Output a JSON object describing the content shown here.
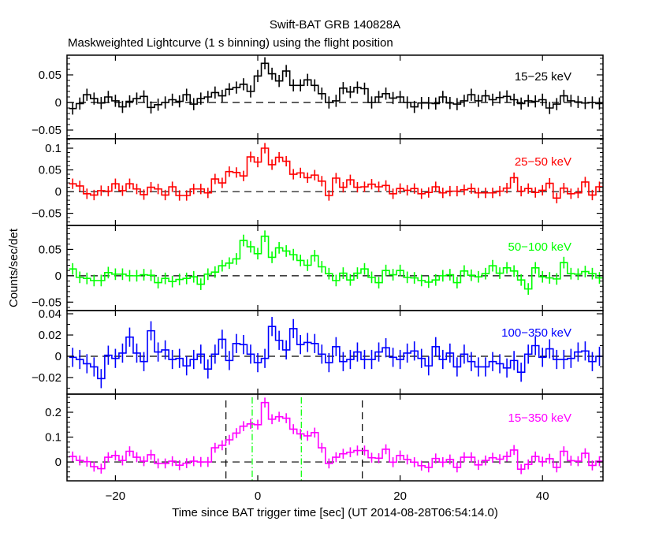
{
  "chart_data": {
    "type": "line",
    "title": "Swift-BAT GRB 140828A",
    "subtitle": "Maskweighted Lightcurve (1 s binning) using the flight position",
    "xlabel": "Time since BAT trigger time [sec] (UT 2014-08-28T06:54:14.0)",
    "ylabel": "Counts/sec/det",
    "xlim": [
      -26.8,
      48.5
    ],
    "xticks": [
      -20,
      0,
      20,
      40
    ],
    "xtick_labels": [
      "−20",
      "0",
      "20",
      "40"
    ],
    "bin_center_start": -26,
    "bin_width": 1,
    "grid": false,
    "panels": [
      {
        "label": "15−25 keV",
        "color": "#000000",
        "ylim": [
          -0.0657,
          0.0857
        ],
        "yticks": [
          -0.05,
          0,
          0.05
        ],
        "ytick_labels": [
          "−0.05",
          "0",
          "0.05"
        ],
        "minor_step": 0.01,
        "error": 0.011,
        "values": [
          -0.011,
          -0.002,
          0.014,
          0.007,
          -0.001,
          0.01,
          0.003,
          -0.008,
          0.002,
          0.007,
          0.011,
          -0.009,
          -0.004,
          0.0,
          0.005,
          0.002,
          0.014,
          -0.003,
          0.007,
          0.01,
          0.018,
          0.012,
          0.024,
          0.027,
          0.033,
          0.02,
          0.048,
          0.071,
          0.052,
          0.039,
          0.057,
          0.031,
          0.031,
          0.041,
          0.031,
          0.016,
          0.0,
          0.003,
          0.026,
          0.019,
          0.027,
          0.025,
          0.0,
          0.01,
          0.016,
          0.008,
          0.01,
          0.0,
          -0.008,
          -0.001,
          -0.001,
          -0.002,
          0.01,
          -0.001,
          -0.003,
          0.003,
          0.014,
          0.003,
          0.012,
          0.005,
          0.009,
          0.011,
          0.005,
          -0.002,
          0.003,
          0.002,
          0.005,
          -0.01,
          -0.003,
          0.012,
          0.003,
          0.001,
          -0.001,
          0.0,
          -0.002
        ]
      },
      {
        "label": "25−50 keV",
        "color": "#ff0000",
        "ylim": [
          -0.078,
          0.1218
        ],
        "yticks": [
          -0.05,
          0,
          0.05,
          0.1
        ],
        "ytick_labels": [
          "−0.05",
          "0",
          "0.05",
          "0.1"
        ],
        "minor_step": 0.01,
        "error": 0.012,
        "values": [
          0.018,
          0.013,
          -0.005,
          -0.008,
          0.002,
          0.001,
          0.018,
          0.002,
          0.018,
          0.006,
          -0.007,
          0.01,
          0.006,
          -0.008,
          0.011,
          -0.009,
          -0.009,
          0.006,
          0.006,
          -0.003,
          0.029,
          0.02,
          0.046,
          0.044,
          0.036,
          0.08,
          0.068,
          0.1,
          0.062,
          0.079,
          0.07,
          0.04,
          0.043,
          0.032,
          0.038,
          0.024,
          -0.009,
          0.031,
          0.01,
          0.027,
          0.01,
          0.011,
          0.017,
          0.011,
          0.014,
          -0.005,
          0.007,
          0.003,
          0.007,
          -0.005,
          -0.002,
          0.011,
          -0.003,
          0.001,
          0.001,
          0.004,
          0.007,
          -0.003,
          -0.003,
          -0.003,
          0.001,
          0.008,
          0.032,
          0.001,
          0.007,
          -0.002,
          0.003,
          0.019,
          -0.015,
          0.008,
          -0.005,
          -0.003,
          0.022,
          -0.008,
          0.011
        ]
      },
      {
        "label": "50−100 keV",
        "color": "#00ff00",
        "ylim": [
          -0.066,
          0.0955
        ],
        "yticks": [
          -0.05,
          0,
          0.05
        ],
        "ytick_labels": [
          "−0.05",
          "0",
          "0.05"
        ],
        "minor_step": 0.01,
        "error": 0.011,
        "values": [
          0.013,
          -0.003,
          -0.005,
          -0.009,
          -0.009,
          0.006,
          0.003,
          0.003,
          0.0,
          0.0,
          0.002,
          0.001,
          -0.013,
          -0.005,
          -0.011,
          -0.007,
          -0.005,
          -0.002,
          -0.016,
          0.003,
          0.007,
          0.019,
          0.024,
          0.032,
          0.067,
          0.055,
          0.042,
          0.075,
          0.035,
          0.053,
          0.047,
          0.04,
          0.029,
          0.02,
          0.038,
          0.017,
          0.004,
          -0.009,
          0.005,
          -0.008,
          0.005,
          0.013,
          -0.003,
          -0.013,
          0.01,
          0.002,
          0.01,
          -0.003,
          -0.004,
          -0.009,
          -0.012,
          -0.008,
          0.0,
          0.002,
          -0.013,
          0.009,
          0.001,
          -0.002,
          0.004,
          0.019,
          0.005,
          0.015,
          0.009,
          -0.008,
          -0.025,
          0.015,
          -0.002,
          -0.004,
          -0.006,
          0.025,
          0.004,
          0.003,
          0.008,
          0.004,
          -0.004
        ]
      },
      {
        "label": "100−350 keV",
        "color": "#0000ff",
        "ylim": [
          -0.0356,
          0.043
        ],
        "yticks": [
          -0.02,
          0,
          0.02,
          0.04
        ],
        "ytick_labels": [
          "−0.02",
          "0",
          "0.02",
          "0.04"
        ],
        "minor_step": 0.01,
        "error": 0.009,
        "values": [
          -0.001,
          -0.003,
          -0.007,
          -0.01,
          -0.021,
          0.001,
          -0.002,
          0.003,
          0.018,
          0.003,
          -0.005,
          0.024,
          0.004,
          0.006,
          -0.003,
          -0.002,
          -0.009,
          -0.003,
          0.002,
          -0.012,
          0.002,
          0.016,
          -0.004,
          0.012,
          0.011,
          0.002,
          -0.006,
          -0.002,
          0.028,
          0.015,
          0.006,
          0.026,
          0.011,
          0.013,
          0.012,
          0.002,
          -0.006,
          0.009,
          -0.005,
          -0.003,
          0.004,
          -0.003,
          -0.003,
          0.004,
          0.008,
          -0.001,
          -0.003,
          0.003,
          0.005,
          -0.002,
          -0.009,
          0.009,
          -0.003,
          0.003,
          -0.01,
          0.002,
          -0.005,
          -0.01,
          -0.01,
          -0.005,
          -0.007,
          -0.011,
          -0.004,
          -0.015,
          0.002,
          0.01,
          -0.001,
          0.007,
          -0.003,
          -0.003,
          -0.002,
          0.004,
          0.005,
          -0.005,
          0.0
        ]
      },
      {
        "label": "15−350 keV",
        "color": "#ff00ff",
        "ylim": [
          -0.076,
          0.273
        ],
        "yticks": [
          0,
          0.1,
          0.2
        ],
        "ytick_labels": [
          "0",
          "0.1",
          "0.2"
        ],
        "minor_step": 0.02,
        "error": 0.02,
        "values": [
          0.022,
          0.006,
          0.001,
          -0.019,
          -0.027,
          0.019,
          0.026,
          0.006,
          0.043,
          0.019,
          0.003,
          0.029,
          -0.006,
          -0.006,
          0.003,
          -0.013,
          -0.005,
          0.003,
          0.0,
          0.0,
          0.057,
          0.067,
          0.089,
          0.116,
          0.144,
          0.153,
          0.15,
          0.239,
          0.172,
          0.182,
          0.176,
          0.132,
          0.113,
          0.105,
          0.118,
          0.057,
          -0.006,
          0.019,
          0.033,
          0.039,
          0.046,
          0.046,
          0.017,
          0.015,
          0.051,
          -0.001,
          0.026,
          0.01,
          -0.001,
          -0.015,
          -0.022,
          0.014,
          -0.001,
          0.01,
          -0.022,
          0.019,
          0.019,
          -0.012,
          0.006,
          0.017,
          0.011,
          0.022,
          0.048,
          -0.029,
          -0.01,
          0.022,
          0.001,
          0.013,
          -0.022,
          0.043,
          0.005,
          0.003,
          0.035,
          -0.014,
          0.003
        ],
        "t90_lines": [
          -4.47,
          14.69
        ],
        "t50_lines": [
          -0.78,
          6.12
        ],
        "t90_color": "#000000",
        "t50_color": "#00ff00"
      }
    ]
  }
}
